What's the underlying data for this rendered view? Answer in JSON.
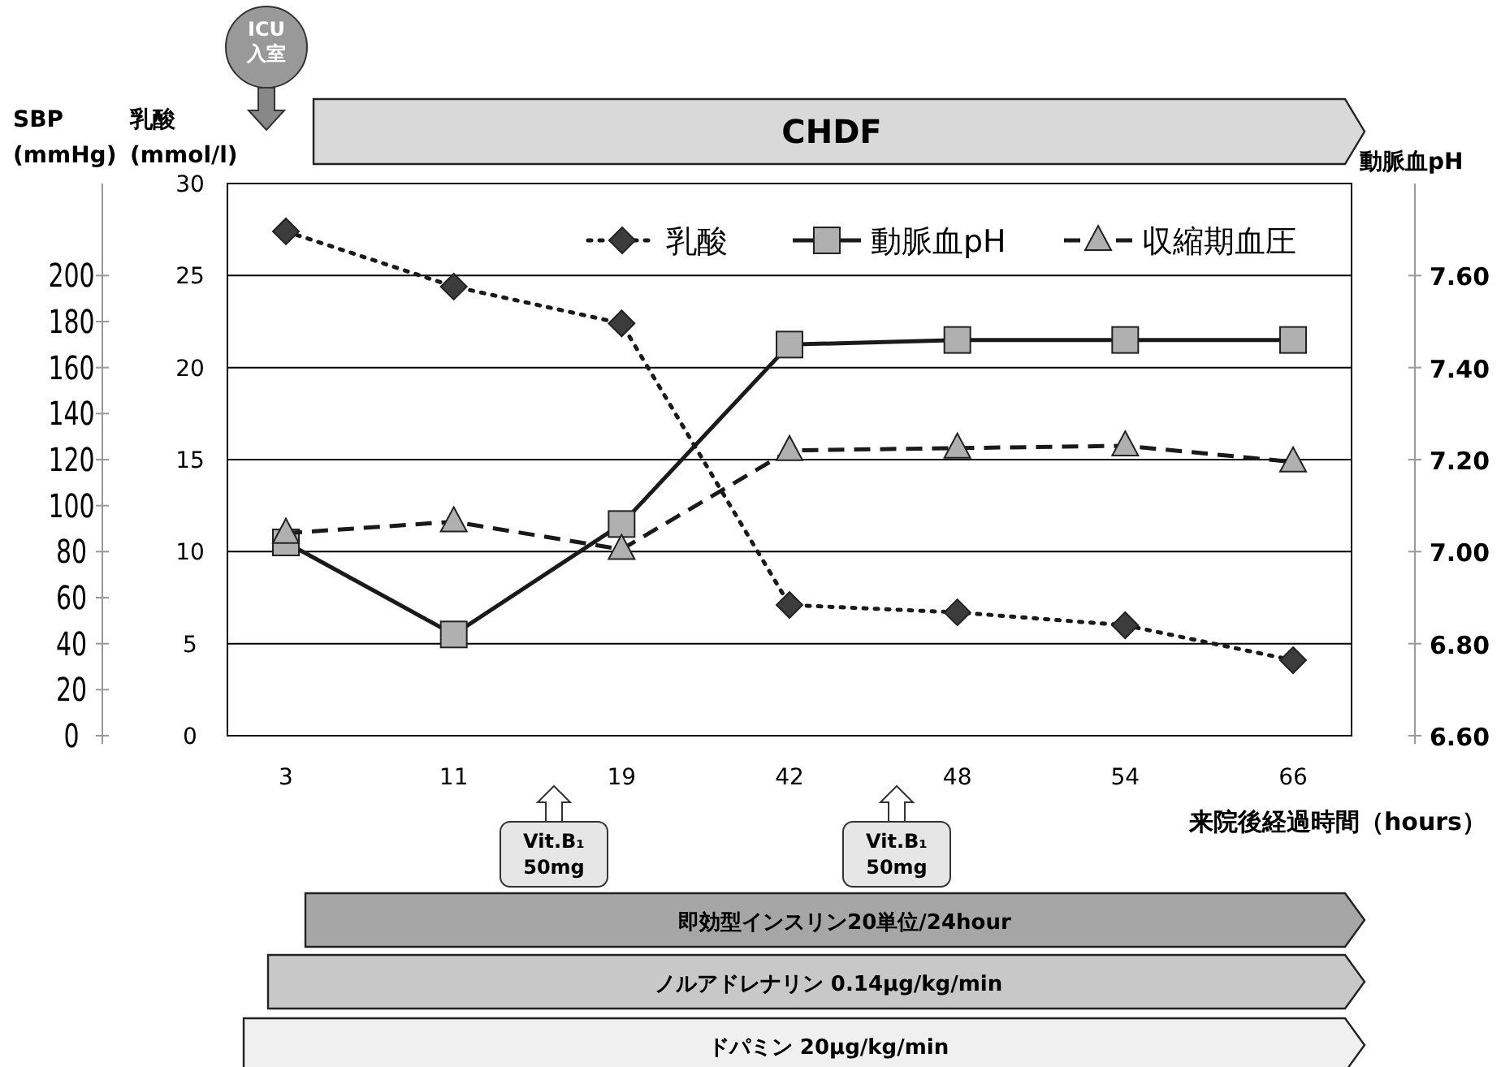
{
  "chart_data": {
    "type": "line",
    "xlabel": "来院後経過時間（hours）",
    "ylabel": "乳酸 (mmol/l)",
    "y2label": "動脈血pH",
    "y3label": "SBP (mmHg)",
    "categories": [
      "3",
      "11",
      "19",
      "42",
      "48",
      "54",
      "66"
    ],
    "ylim": [
      0,
      30
    ],
    "yticks": [
      0,
      5,
      10,
      15,
      20,
      25,
      30
    ],
    "y2lim": [
      6.6,
      7.8
    ],
    "y2ticks": [
      {
        "value": 6.6,
        "label": "6.60"
      },
      {
        "value": 6.8,
        "label": "6.80"
      },
      {
        "value": 7.0,
        "label": "7.00"
      },
      {
        "value": 7.2,
        "label": "7.20"
      },
      {
        "value": 7.4,
        "label": "7.40"
      },
      {
        "value": 7.6,
        "label": "7.60"
      }
    ],
    "y3lim": [
      0,
      240
    ],
    "y3ticks": [
      0,
      20,
      40,
      60,
      80,
      100,
      120,
      140,
      160,
      180,
      200
    ],
    "grid": "y",
    "legend": "top right",
    "series": [
      {
        "name": "乳酸",
        "color": "#3c3c3c",
        "marker": "diamond",
        "line_style": "dotted",
        "values": [
          27.4,
          24.4,
          22.4,
          7.1,
          6.7,
          6.0,
          4.1
        ]
      },
      {
        "name": "動脈血pH",
        "color": "#b0b0b0",
        "marker": "square",
        "line_style": "solid",
        "axis": "y2",
        "values": [
          7.02,
          6.82,
          7.06,
          7.45,
          7.46,
          7.46,
          7.46
        ]
      },
      {
        "name": "収縮期血圧",
        "color": "#b0b0b0",
        "marker": "triangle",
        "line_style": "dashed",
        "axis": "y3",
        "values": [
          88,
          93,
          81,
          124,
          125,
          126,
          119
        ]
      }
    ],
    "annotations": [
      "ICU 入室",
      "CHDF",
      "Vit.B₁ 50mg",
      "Vit.B₁ 50mg",
      "即効型インスリン20単位/24hour",
      "ノルアドレナリン 0.14μg/kg/min",
      "ドパミン 20μg/kg/min"
    ]
  }
}
